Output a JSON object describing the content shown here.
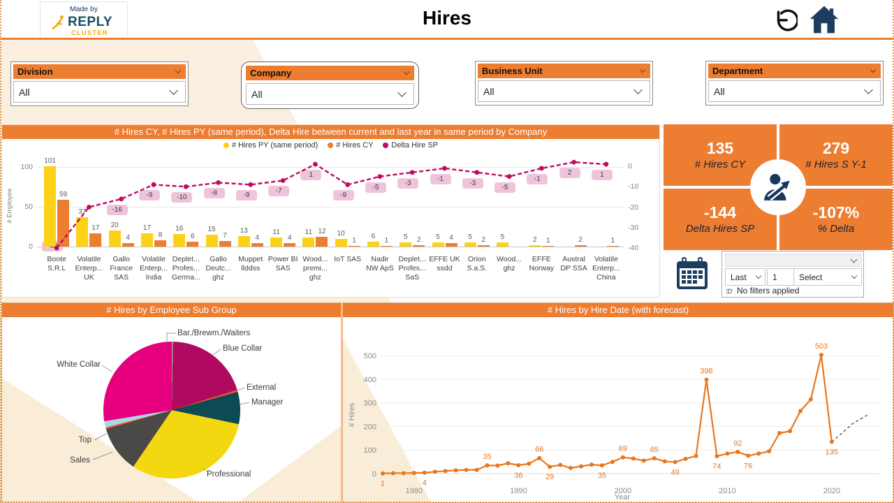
{
  "header": {
    "made_by": "Made by",
    "brand": "REPLY",
    "brand_sub": "CLUSTER",
    "title": "Hires"
  },
  "filters": [
    {
      "label": "Division",
      "value": "All"
    },
    {
      "label": "Company",
      "value": "All"
    },
    {
      "label": "Business Unit",
      "value": "All"
    },
    {
      "label": "Department",
      "value": "All"
    }
  ],
  "kpis": [
    {
      "value": "135",
      "label": "# Hires CY"
    },
    {
      "value": "279",
      "label": "# Hires S Y-1"
    },
    {
      "value": "-144",
      "label": "Delta Hires SP"
    },
    {
      "value": "-107%",
      "label": "% Delta"
    }
  ],
  "date_slicer": {
    "top_value": "",
    "mode": "Last",
    "count": "1",
    "unit": "Select",
    "status": "No filters applied"
  },
  "colors": {
    "accent": "#ED7D31",
    "yellow": "#FCD116",
    "magenta": "#C00A64",
    "navy": "#17375E",
    "cream": "#FAEDD7",
    "delta_label_bg": "#EFC4DB",
    "line_orange": "#E8771E"
  },
  "chart_data": [
    {
      "id": "combo",
      "type": "bar+line",
      "title": "# Hires CY, # Hires PY (same period), Delta Hire between current and last year in same period by Company",
      "y_left_label": "# Employee",
      "y_left_ticks": [
        0,
        50,
        100
      ],
      "y_right_ticks": [
        0,
        -10,
        -20,
        -30,
        -40
      ],
      "categories": [
        [
          "Boote",
          "S.R.L"
        ],
        [
          "Volatile",
          "Enterp...",
          "UK"
        ],
        [
          "Gallo",
          "France",
          "SAS"
        ],
        [
          "Volatile",
          "Enterp...",
          "India"
        ],
        [
          "Deplet...",
          "Profes...",
          "Germa..."
        ],
        [
          "Gallo",
          "Deutc...",
          "ghz"
        ],
        [
          "Muppet",
          "llddss"
        ],
        [
          "Power BI",
          "SAS"
        ],
        [
          "Wood...",
          "premi...",
          "ghz"
        ],
        [
          "IoT SAS"
        ],
        [
          "Nadir",
          "NW ApS"
        ],
        [
          "Deplet...",
          "Profes...",
          "SaS"
        ],
        [
          "EFFE UK",
          "ssdd"
        ],
        [
          "Orion",
          "S.a.S."
        ],
        [
          "Wood...",
          "ghz"
        ],
        [
          "EFFE",
          "Norway"
        ],
        [
          "Austral",
          "DP SSA"
        ],
        [
          "Volatile",
          "Enterp...",
          "China"
        ]
      ],
      "series": [
        {
          "name": "# Hires PY (same period)",
          "color": "#FCD116",
          "values": [
            101,
            37,
            20,
            17,
            16,
            15,
            13,
            11,
            11,
            10,
            6,
            5,
            5,
            5,
            5,
            2,
            0,
            0
          ]
        },
        {
          "name": "# Hires CY",
          "color": "#ED7D31",
          "values": [
            59,
            17,
            4,
            8,
            6,
            7,
            4,
            4,
            12,
            1,
            1,
            2,
            4,
            2,
            0,
            1,
            2,
            1
          ]
        },
        {
          "name": "Delta Hire SP",
          "color": "#C00A64",
          "values": [
            -42,
            -20,
            -16,
            -9,
            -10,
            -8,
            -9,
            -7,
            1,
            -9,
            -5,
            -3,
            -1,
            -3,
            -5,
            -1,
            2,
            1
          ]
        }
      ],
      "delta_label_skip": [
        1
      ]
    },
    {
      "id": "pie",
      "type": "pie",
      "title": "# Hires by Employee Sub Group",
      "slices": [
        {
          "label": "Bar./Brewm./Waiters",
          "value_pct": 0.3,
          "color": "#9E9E9E"
        },
        {
          "label": "Blue Collar",
          "value_pct": 19.9,
          "color": "#B00960"
        },
        {
          "label": "External",
          "value_pct": 0.5,
          "color": "#E8562D"
        },
        {
          "label": "Manager",
          "value_pct": 7.6,
          "color": "#0C4A54"
        },
        {
          "label": "Professional",
          "value_pct": 31.2,
          "color": "#F3D811"
        },
        {
          "label": "Sales",
          "value_pct": 11.0,
          "color": "#4B4848"
        },
        {
          "label": "Top",
          "value_pct": 1.9,
          "color": "#A8D8E8"
        },
        {
          "label": "White Collar",
          "value_pct": 27.6,
          "color": "#E6007E"
        }
      ]
    },
    {
      "id": "line",
      "type": "line",
      "title": "# Hires by Hire Date (with forecast)",
      "xlabel": "Year",
      "ylabel": "# Hires",
      "x_ticks": [
        1980,
        1990,
        2000,
        2010,
        2020
      ],
      "y_ticks": [
        0,
        100,
        200,
        300,
        400,
        500
      ],
      "years": [
        1977,
        1978,
        1979,
        1980,
        1981,
        1982,
        1983,
        1984,
        1985,
        1986,
        1987,
        1988,
        1989,
        1990,
        1991,
        1992,
        1993,
        1994,
        1995,
        1996,
        1997,
        1998,
        1999,
        2000,
        2001,
        2002,
        2003,
        2004,
        2005,
        2006,
        2007,
        2008,
        2009,
        2010,
        2011,
        2012,
        2013,
        2014,
        2015,
        2016,
        2017,
        2018,
        2019,
        2020
      ],
      "values": [
        1,
        2,
        2,
        3,
        4,
        8,
        11,
        14,
        16,
        16,
        35,
        34,
        44,
        36,
        42,
        66,
        29,
        37,
        24,
        31,
        38,
        35,
        50,
        69,
        64,
        55,
        65,
        52,
        49,
        63,
        75,
        398,
        74,
        85,
        92,
        76,
        85,
        95,
        172,
        180,
        265,
        315,
        503,
        135
      ],
      "labeled_points": [
        {
          "year": 1977,
          "value": 1,
          "pos": "below"
        },
        {
          "year": 1981,
          "value": 4,
          "pos": "below"
        },
        {
          "year": 1987,
          "value": 35,
          "pos": "above"
        },
        {
          "year": 1990,
          "value": 36,
          "pos": "below"
        },
        {
          "year": 1992,
          "value": 66,
          "pos": "above"
        },
        {
          "year": 1993,
          "value": 29,
          "pos": "below"
        },
        {
          "year": 1998,
          "value": 35,
          "pos": "below"
        },
        {
          "year": 2000,
          "value": 69,
          "pos": "above"
        },
        {
          "year": 2003,
          "value": 65,
          "pos": "above"
        },
        {
          "year": 2005,
          "value": 49,
          "pos": "below"
        },
        {
          "year": 2008,
          "value": 398,
          "pos": "above"
        },
        {
          "year": 2009,
          "value": 74,
          "pos": "below"
        },
        {
          "year": 2011,
          "value": 92,
          "pos": "above"
        },
        {
          "year": 2012,
          "value": 76,
          "pos": "below"
        },
        {
          "year": 2019,
          "value": 503,
          "pos": "above"
        },
        {
          "year": 2020,
          "value": 135,
          "pos": "below"
        }
      ],
      "forecast": {
        "years": [
          2020,
          2021,
          2022,
          2023.5
        ],
        "values": [
          135,
          172,
          212,
          250
        ],
        "style": "dashed"
      }
    }
  ]
}
